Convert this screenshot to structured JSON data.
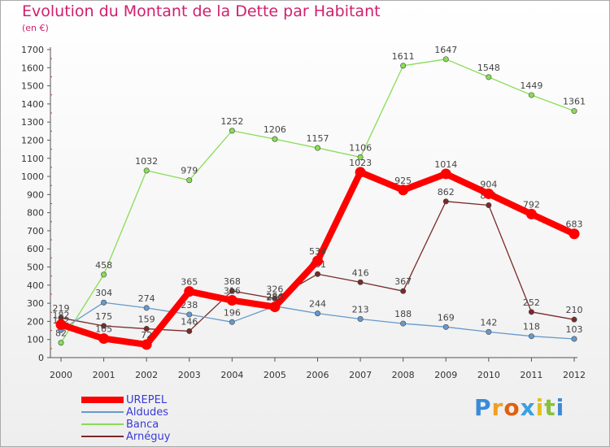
{
  "title": "Evolution du Montant de la Dette par Habitant",
  "subtitle": "(en €)",
  "logo": "Proxiti",
  "chart_data": {
    "type": "line",
    "title": "Evolution du Montant de la Dette par Habitant",
    "ylabel": "(en €)",
    "x": [
      "2000",
      "2001",
      "2002",
      "2003",
      "2004",
      "2005",
      "2006",
      "2007",
      "2008",
      "2009",
      "2010",
      "2011",
      "2012"
    ],
    "ylim": [
      0,
      1700
    ],
    "yticks": [
      0,
      100,
      200,
      300,
      400,
      500,
      600,
      700,
      800,
      900,
      1000,
      1100,
      1200,
      1300,
      1400,
      1500,
      1600,
      1700
    ],
    "grid": false,
    "legend_position": "bottom-left",
    "series": [
      {
        "name": "Banca",
        "color": "#88dd55",
        "values": [
          82,
          458,
          1032,
          979,
          1252,
          1206,
          1157,
          1106,
          1611,
          1647,
          1548,
          1449,
          1361
        ]
      },
      {
        "name": "Arnéguy",
        "color": "#7a2a2a",
        "values": [
          219,
          175,
          159,
          146,
          368,
          326,
          461,
          416,
          367,
          862,
          841,
          252,
          210
        ]
      },
      {
        "name": "Aldudes",
        "color": "#6699cc",
        "values": [
          152,
          304,
          274,
          238,
          196,
          284,
          244,
          213,
          188,
          169,
          142,
          118,
          103
        ]
      },
      {
        "name": "UREPEL",
        "color": "#ff0000",
        "values": [
          182,
          105,
          72,
          365,
          316,
          280,
          534,
          1023,
          925,
          1014,
          904,
          792,
          683
        ]
      }
    ],
    "legend_order": [
      "UREPEL",
      "Aldudes",
      "Banca",
      "Arnéguy"
    ]
  }
}
